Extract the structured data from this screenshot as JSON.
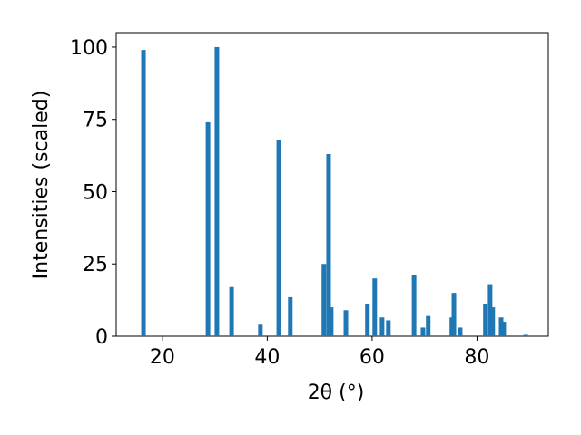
{
  "chart_data": {
    "type": "bar",
    "x_label": "2θ (°)",
    "y_label": "Intensities (scaled)",
    "x": [
      16.4,
      28.7,
      30.4,
      33.2,
      38.7,
      42.2,
      44.4,
      50.8,
      51.7,
      52.2,
      55.0,
      59.1,
      60.5,
      61.9,
      63.1,
      68.0,
      69.7,
      70.7,
      75.2,
      75.6,
      76.8,
      81.6,
      82.5,
      83.0,
      84.6,
      85.1,
      89.3
    ],
    "values": [
      99,
      74,
      100,
      17,
      4,
      68,
      13.5,
      25,
      63,
      10,
      9,
      11,
      20,
      6.5,
      5.5,
      21,
      3,
      7,
      6.5,
      15,
      3,
      11,
      18,
      10,
      6.5,
      5,
      0.5
    ],
    "color": "#1f77b4",
    "xlim": [
      11.2,
      93.6
    ],
    "xticks": [
      20,
      40,
      60,
      80
    ],
    "ylim": [
      0,
      105
    ],
    "yticks": [
      0,
      25,
      50,
      75,
      100
    ]
  }
}
